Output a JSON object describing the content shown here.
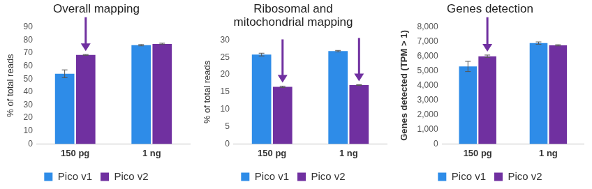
{
  "chart_data": [
    {
      "type": "bar",
      "title": "Overall mapping",
      "y_label": "% of total reads",
      "categories": [
        "150 pg",
        "1 ng"
      ],
      "series": [
        {
          "name": "Pico v1",
          "color": "#2e8ce8",
          "values": [
            54,
            76
          ],
          "errors": [
            3,
            0.5
          ]
        },
        {
          "name": "Pico v2",
          "color": "#7030a0",
          "values": [
            68.5,
            77
          ],
          "errors": [
            0.3,
            0.5
          ]
        }
      ],
      "ylim": [
        0,
        90
      ],
      "yticks": [
        0,
        10,
        20,
        30,
        40,
        50,
        60,
        70,
        80,
        90
      ],
      "grid": false,
      "legend": "bottom"
    },
    {
      "type": "bar",
      "title": [
        "Ribosomal and",
        "mitochondrial mapping"
      ],
      "y_label": "% of total reads",
      "categories": [
        "150 pg",
        "1 ng"
      ],
      "series": [
        {
          "name": "Pico v1",
          "color": "#2e8ce8",
          "values": [
            25.8,
            26.8
          ],
          "errors": [
            0.4,
            0.2
          ]
        },
        {
          "name": "Pico v2",
          "color": "#7030a0",
          "values": [
            16.5,
            17
          ],
          "errors": [
            0.2,
            0.1
          ]
        }
      ],
      "ylim": [
        0,
        30
      ],
      "yticks": [
        0,
        5,
        10,
        15,
        20,
        25,
        30
      ],
      "grid": false,
      "legend": "bottom"
    },
    {
      "type": "bar",
      "title": "Genes detection",
      "y_label": "Genes detected (TPM > 1)",
      "categories": [
        "150 pg",
        "1 ng"
      ],
      "series": [
        {
          "name": "Pico v1",
          "color": "#2e8ce8",
          "values": [
            5300,
            6900
          ],
          "errors": [
            350,
            80
          ]
        },
        {
          "name": "Pico v2",
          "color": "#7030a0",
          "values": [
            6000,
            6750
          ],
          "errors": [
            80,
            40
          ]
        }
      ],
      "ylim": [
        0,
        8000
      ],
      "yticks": [
        0,
        {
          "value": 1000,
          "label": "1,000"
        },
        {
          "value": 2000,
          "label": "2,000"
        },
        {
          "value": 3000,
          "label": "3,000"
        },
        {
          "value": 4000,
          "label": "4,000"
        },
        {
          "value": 5000,
          "label": "5,000"
        },
        {
          "value": 6000,
          "label": "6,000"
        },
        {
          "value": 7000,
          "label": "7,000"
        },
        {
          "value": 8000,
          "label": "8,000"
        }
      ],
      "grid": false,
      "legend": "bottom"
    }
  ]
}
